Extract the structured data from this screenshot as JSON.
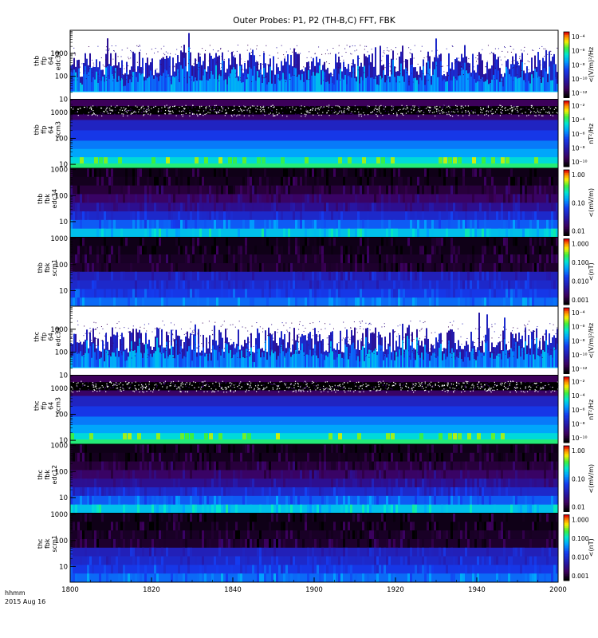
{
  "chart_data": [
    {
      "type": "heatmap",
      "title": "Outer Probes: P1, P2 (TH-B,C) FFT, FBK",
      "time_axis": {
        "ticks": [
          "1800",
          "1820",
          "1840",
          "1900",
          "1920",
          "1940",
          "2000"
        ],
        "format_label": "hhmm",
        "date_label": "2015 Aug 16"
      },
      "panels": [
        {
          "id": "thb-ffp64-edc34",
          "ylabel": [
            "thb",
            "ffp",
            "64",
            "edc34"
          ],
          "yticks": [
            "1000",
            "100",
            "10"
          ],
          "ylog": [
            1,
            4
          ],
          "colorbar": {
            "ticks": [
              "10⁻⁴",
              "10⁻⁶",
              "10⁻⁸",
              "10⁻¹⁰",
              "10⁻¹²"
            ],
            "label": "<(V/m)²/Hz"
          },
          "style": "spiky"
        },
        {
          "id": "thb-ffp64-scm3",
          "ylabel": [
            "thb",
            "ffp",
            "64",
            "scm3"
          ],
          "yticks": [
            "1000",
            "100",
            "10"
          ],
          "ylog": [
            0.85,
            3.5
          ],
          "colorbar": {
            "ticks": [
              "10⁻²",
              "10⁻⁴",
              "10⁻⁶",
              "10⁻⁸",
              "10⁻¹⁰"
            ],
            "label": "nT²/Hz"
          },
          "style": "scm"
        },
        {
          "id": "thb-fbk-edc34",
          "ylabel": [
            "thb",
            "fbk",
            "edc34"
          ],
          "yticks": [
            "1000",
            "100",
            "10"
          ],
          "ylog": [
            0.4,
            3.05
          ],
          "colorbar": {
            "ticks": [
              "1.00",
              "0.10",
              "0.01"
            ],
            "label": "<(mV/m)"
          },
          "style": "fbk"
        },
        {
          "id": "thb-fbk-scm1",
          "ylabel": [
            "thb",
            "fbk",
            "scm1"
          ],
          "yticks": [
            "1000",
            "100",
            "10"
          ],
          "ylog": [
            0.4,
            3.05
          ],
          "colorbar": {
            "ticks": [
              "1.000",
              "0.100",
              "0.010",
              "0.001"
            ],
            "label": "<(nT)"
          },
          "style": "fbkscm"
        },
        {
          "id": "thc-ffp64-edc34",
          "ylabel": [
            "thc",
            "ffp",
            "64",
            "edc34"
          ],
          "yticks": [
            "1000",
            "100",
            "10"
          ],
          "ylog": [
            1,
            4
          ],
          "colorbar": {
            "ticks": [
              "10⁻⁴",
              "10⁻⁶",
              "10⁻⁸",
              "10⁻¹⁰",
              "10⁻¹²"
            ],
            "label": "<(V/m)²/Hz"
          },
          "style": "spiky"
        },
        {
          "id": "thc-ffp64-scm3",
          "ylabel": [
            "thc",
            "ffp",
            "64",
            "scm3"
          ],
          "yticks": [
            "1000",
            "100",
            "10"
          ],
          "ylog": [
            0.85,
            3.5
          ],
          "colorbar": {
            "ticks": [
              "10⁻²",
              "10⁻⁴",
              "10⁻⁶",
              "10⁻⁸",
              "10⁻¹⁰"
            ],
            "label": "nT²/Hz"
          },
          "style": "scm"
        },
        {
          "id": "thc-fbk-edc12",
          "ylabel": [
            "thc",
            "fbk",
            "edc12"
          ],
          "yticks": [
            "1000",
            "100",
            "10"
          ],
          "ylog": [
            0.4,
            3.05
          ],
          "colorbar": {
            "ticks": [
              "1.00",
              "0.10",
              "0.01"
            ],
            "label": "<(mV/m)"
          },
          "style": "fbk"
        },
        {
          "id": "thc-fbk-scm1",
          "ylabel": [
            "thc",
            "fbk",
            "scm1"
          ],
          "yticks": [
            "1000",
            "100",
            "10"
          ],
          "ylog": [
            0.4,
            3.05
          ],
          "colorbar": {
            "ticks": [
              "1.000",
              "0.100",
              "0.010",
              "0.001"
            ],
            "label": "<(nT)"
          },
          "style": "fbkscm"
        }
      ]
    }
  ]
}
